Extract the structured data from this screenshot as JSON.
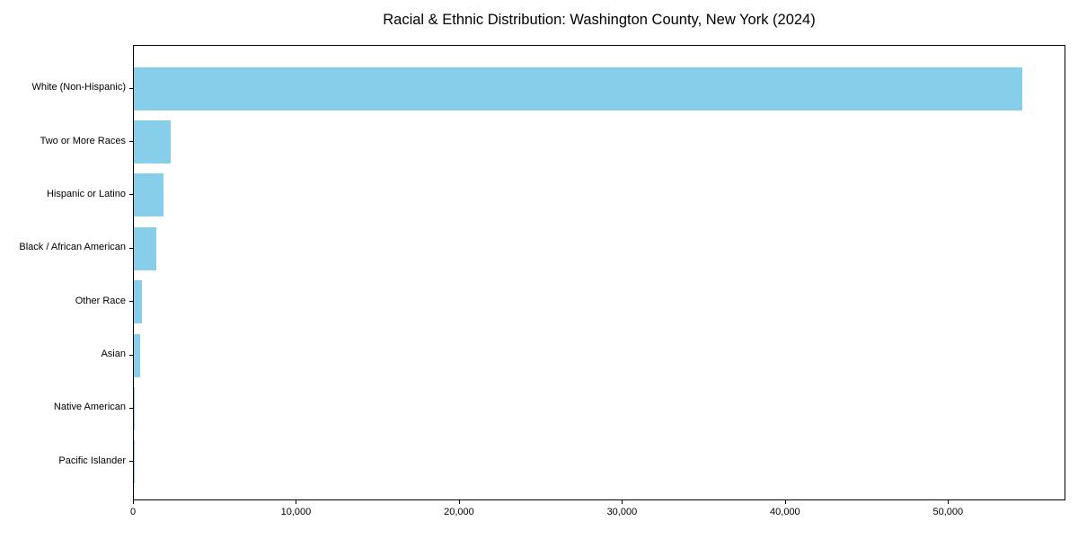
{
  "chart_data": {
    "type": "bar",
    "orientation": "horizontal",
    "title": "Racial & Ethnic Distribution: Washington County, New York (2024)",
    "categories": [
      "White (Non-Hispanic)",
      "Two or More Races",
      "Hispanic or Latino",
      "Black / African American",
      "Other Race",
      "Asian",
      "Native American",
      "Pacific Islander"
    ],
    "values": [
      54500,
      2250,
      1800,
      1400,
      500,
      400,
      30,
      10
    ],
    "bar_color": "#87CEEB",
    "xlabel": "",
    "ylabel": "",
    "xlim": [
      0,
      57200
    ],
    "xticks": [
      0,
      10000,
      20000,
      30000,
      40000,
      50000
    ],
    "xtick_labels": [
      "0",
      "10,000",
      "20,000",
      "30,000",
      "40,000",
      "50,000"
    ],
    "grid": false,
    "legend": "none",
    "background_color": "#ffffff",
    "spine_color": "#000000"
  }
}
